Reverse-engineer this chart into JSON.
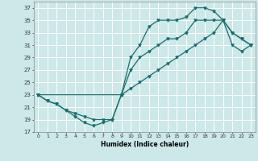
{
  "xlabel": "Humidex (Indice chaleur)",
  "bg_color": "#cce8e8",
  "line_color": "#1a6e6e",
  "grid_color": "#ffffff",
  "xlim": [
    -0.5,
    23.5
  ],
  "ylim": [
    17,
    38
  ],
  "xticks": [
    0,
    1,
    2,
    3,
    4,
    5,
    6,
    7,
    8,
    9,
    10,
    11,
    12,
    13,
    14,
    15,
    16,
    17,
    18,
    19,
    20,
    21,
    22,
    23
  ],
  "yticks": [
    17,
    19,
    21,
    23,
    25,
    27,
    29,
    31,
    33,
    35,
    37
  ],
  "line1_x": [
    0,
    1,
    2,
    3,
    4,
    5,
    6,
    7,
    8,
    9,
    10,
    11,
    12,
    13,
    14,
    15,
    16,
    17,
    18,
    19,
    20,
    21,
    22,
    23
  ],
  "line1_y": [
    23,
    22,
    21.5,
    20.5,
    19.5,
    18.5,
    18,
    18.5,
    19,
    23,
    29,
    31,
    34,
    35,
    35,
    35,
    35.5,
    37,
    37,
    36.5,
    35,
    33,
    32,
    31
  ],
  "line2_x": [
    0,
    1,
    2,
    3,
    4,
    5,
    6,
    7,
    8,
    9,
    10,
    11,
    12,
    13,
    14,
    15,
    16,
    17,
    18,
    19,
    20,
    21,
    22,
    23
  ],
  "line2_y": [
    23,
    22,
    21.5,
    20.5,
    20,
    19.5,
    19,
    19,
    19,
    23,
    27,
    29,
    30,
    31,
    32,
    32,
    33,
    35,
    35,
    35,
    35,
    31,
    30,
    31
  ],
  "line3_x": [
    0,
    9,
    10,
    11,
    12,
    13,
    14,
    15,
    16,
    17,
    18,
    19,
    20,
    21,
    22,
    23
  ],
  "line3_y": [
    23,
    23,
    24,
    25,
    26,
    27,
    28,
    29,
    30,
    31,
    32,
    33,
    35,
    33,
    32,
    31
  ]
}
